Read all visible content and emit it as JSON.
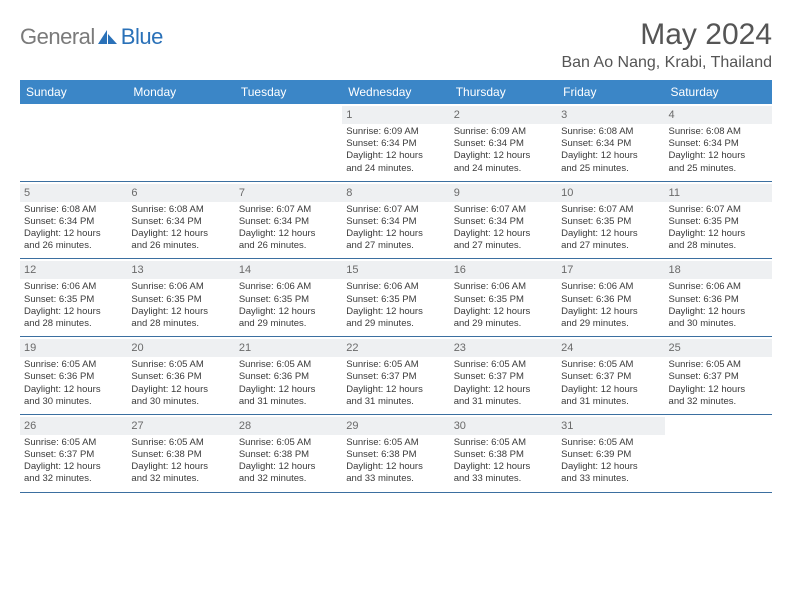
{
  "brand": {
    "part1": "General",
    "part2": "Blue"
  },
  "title": "May 2024",
  "location": "Ban Ao Nang, Krabi, Thailand",
  "colors": {
    "header_bg": "#3b86c7",
    "header_text": "#ffffff",
    "rule": "#3b6fa0",
    "daybar_bg": "#eef0f2",
    "text": "#3a3a3a",
    "title_text": "#555555",
    "logo_gray": "#7a7a7a",
    "logo_blue": "#2a71b8",
    "page_bg": "#ffffff"
  },
  "dow": [
    "Sunday",
    "Monday",
    "Tuesday",
    "Wednesday",
    "Thursday",
    "Friday",
    "Saturday"
  ],
  "weeks": [
    [
      {
        "n": "",
        "l": [
          "",
          "",
          "",
          ""
        ]
      },
      {
        "n": "",
        "l": [
          "",
          "",
          "",
          ""
        ]
      },
      {
        "n": "",
        "l": [
          "",
          "",
          "",
          ""
        ]
      },
      {
        "n": "1",
        "l": [
          "Sunrise: 6:09 AM",
          "Sunset: 6:34 PM",
          "Daylight: 12 hours",
          "and 24 minutes."
        ]
      },
      {
        "n": "2",
        "l": [
          "Sunrise: 6:09 AM",
          "Sunset: 6:34 PM",
          "Daylight: 12 hours",
          "and 24 minutes."
        ]
      },
      {
        "n": "3",
        "l": [
          "Sunrise: 6:08 AM",
          "Sunset: 6:34 PM",
          "Daylight: 12 hours",
          "and 25 minutes."
        ]
      },
      {
        "n": "4",
        "l": [
          "Sunrise: 6:08 AM",
          "Sunset: 6:34 PM",
          "Daylight: 12 hours",
          "and 25 minutes."
        ]
      }
    ],
    [
      {
        "n": "5",
        "l": [
          "Sunrise: 6:08 AM",
          "Sunset: 6:34 PM",
          "Daylight: 12 hours",
          "and 26 minutes."
        ]
      },
      {
        "n": "6",
        "l": [
          "Sunrise: 6:08 AM",
          "Sunset: 6:34 PM",
          "Daylight: 12 hours",
          "and 26 minutes."
        ]
      },
      {
        "n": "7",
        "l": [
          "Sunrise: 6:07 AM",
          "Sunset: 6:34 PM",
          "Daylight: 12 hours",
          "and 26 minutes."
        ]
      },
      {
        "n": "8",
        "l": [
          "Sunrise: 6:07 AM",
          "Sunset: 6:34 PM",
          "Daylight: 12 hours",
          "and 27 minutes."
        ]
      },
      {
        "n": "9",
        "l": [
          "Sunrise: 6:07 AM",
          "Sunset: 6:34 PM",
          "Daylight: 12 hours",
          "and 27 minutes."
        ]
      },
      {
        "n": "10",
        "l": [
          "Sunrise: 6:07 AM",
          "Sunset: 6:35 PM",
          "Daylight: 12 hours",
          "and 27 minutes."
        ]
      },
      {
        "n": "11",
        "l": [
          "Sunrise: 6:07 AM",
          "Sunset: 6:35 PM",
          "Daylight: 12 hours",
          "and 28 minutes."
        ]
      }
    ],
    [
      {
        "n": "12",
        "l": [
          "Sunrise: 6:06 AM",
          "Sunset: 6:35 PM",
          "Daylight: 12 hours",
          "and 28 minutes."
        ]
      },
      {
        "n": "13",
        "l": [
          "Sunrise: 6:06 AM",
          "Sunset: 6:35 PM",
          "Daylight: 12 hours",
          "and 28 minutes."
        ]
      },
      {
        "n": "14",
        "l": [
          "Sunrise: 6:06 AM",
          "Sunset: 6:35 PM",
          "Daylight: 12 hours",
          "and 29 minutes."
        ]
      },
      {
        "n": "15",
        "l": [
          "Sunrise: 6:06 AM",
          "Sunset: 6:35 PM",
          "Daylight: 12 hours",
          "and 29 minutes."
        ]
      },
      {
        "n": "16",
        "l": [
          "Sunrise: 6:06 AM",
          "Sunset: 6:35 PM",
          "Daylight: 12 hours",
          "and 29 minutes."
        ]
      },
      {
        "n": "17",
        "l": [
          "Sunrise: 6:06 AM",
          "Sunset: 6:36 PM",
          "Daylight: 12 hours",
          "and 29 minutes."
        ]
      },
      {
        "n": "18",
        "l": [
          "Sunrise: 6:06 AM",
          "Sunset: 6:36 PM",
          "Daylight: 12 hours",
          "and 30 minutes."
        ]
      }
    ],
    [
      {
        "n": "19",
        "l": [
          "Sunrise: 6:05 AM",
          "Sunset: 6:36 PM",
          "Daylight: 12 hours",
          "and 30 minutes."
        ]
      },
      {
        "n": "20",
        "l": [
          "Sunrise: 6:05 AM",
          "Sunset: 6:36 PM",
          "Daylight: 12 hours",
          "and 30 minutes."
        ]
      },
      {
        "n": "21",
        "l": [
          "Sunrise: 6:05 AM",
          "Sunset: 6:36 PM",
          "Daylight: 12 hours",
          "and 31 minutes."
        ]
      },
      {
        "n": "22",
        "l": [
          "Sunrise: 6:05 AM",
          "Sunset: 6:37 PM",
          "Daylight: 12 hours",
          "and 31 minutes."
        ]
      },
      {
        "n": "23",
        "l": [
          "Sunrise: 6:05 AM",
          "Sunset: 6:37 PM",
          "Daylight: 12 hours",
          "and 31 minutes."
        ]
      },
      {
        "n": "24",
        "l": [
          "Sunrise: 6:05 AM",
          "Sunset: 6:37 PM",
          "Daylight: 12 hours",
          "and 31 minutes."
        ]
      },
      {
        "n": "25",
        "l": [
          "Sunrise: 6:05 AM",
          "Sunset: 6:37 PM",
          "Daylight: 12 hours",
          "and 32 minutes."
        ]
      }
    ],
    [
      {
        "n": "26",
        "l": [
          "Sunrise: 6:05 AM",
          "Sunset: 6:37 PM",
          "Daylight: 12 hours",
          "and 32 minutes."
        ]
      },
      {
        "n": "27",
        "l": [
          "Sunrise: 6:05 AM",
          "Sunset: 6:38 PM",
          "Daylight: 12 hours",
          "and 32 minutes."
        ]
      },
      {
        "n": "28",
        "l": [
          "Sunrise: 6:05 AM",
          "Sunset: 6:38 PM",
          "Daylight: 12 hours",
          "and 32 minutes."
        ]
      },
      {
        "n": "29",
        "l": [
          "Sunrise: 6:05 AM",
          "Sunset: 6:38 PM",
          "Daylight: 12 hours",
          "and 33 minutes."
        ]
      },
      {
        "n": "30",
        "l": [
          "Sunrise: 6:05 AM",
          "Sunset: 6:38 PM",
          "Daylight: 12 hours",
          "and 33 minutes."
        ]
      },
      {
        "n": "31",
        "l": [
          "Sunrise: 6:05 AM",
          "Sunset: 6:39 PM",
          "Daylight: 12 hours",
          "and 33 minutes."
        ]
      },
      {
        "n": "",
        "l": [
          "",
          "",
          "",
          ""
        ]
      }
    ]
  ]
}
